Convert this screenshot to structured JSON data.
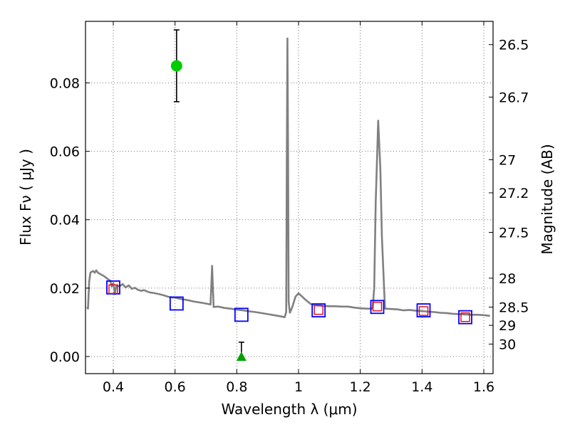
{
  "chart_data": {
    "type": "scatter",
    "title": "",
    "xlabel": "Wavelength  λ (μm)",
    "ylabel": "Flux  Fν  ( μJy )",
    "ylabel_right": "Magnitude (AB)",
    "xlim": [
      0.31,
      1.63
    ],
    "ylim": [
      -0.005,
      0.098
    ],
    "grid": true,
    "x_ticks": [
      0.4,
      0.6,
      0.8,
      1.0,
      1.2,
      1.4,
      1.6
    ],
    "x_tick_labels": [
      "0.4",
      "0.6",
      "0.8",
      "1",
      "1.2",
      "1.4",
      "1.6"
    ],
    "y_ticks": [
      0.0,
      0.02,
      0.04,
      0.06,
      0.08
    ],
    "y_tick_labels": [
      "0.00",
      "0.02",
      "0.04",
      "0.06",
      "0.08"
    ],
    "mag_ticks": [
      26.5,
      26.7,
      27,
      27.2,
      27.5,
      28,
      28.5,
      29,
      30
    ],
    "mag_tick_labels": [
      "26.5",
      "26.7",
      "27",
      "27.2",
      "27.5",
      "28",
      "28.5",
      "29",
      "30"
    ],
    "colors": {
      "spectrum": "#808080",
      "observed": "#0000ff",
      "model": "#e8001c",
      "detection": "#00cc00",
      "upper_limit": "#00a000",
      "errorbar": "#000000"
    },
    "series": [
      {
        "name": "model spectrum",
        "kind": "line",
        "points": [
          [
            0.315,
            0.0145
          ],
          [
            0.318,
            0.014
          ],
          [
            0.322,
            0.022
          ],
          [
            0.326,
            0.0245
          ],
          [
            0.33,
            0.0248
          ],
          [
            0.335,
            0.025
          ],
          [
            0.34,
            0.0245
          ],
          [
            0.345,
            0.0252
          ],
          [
            0.35,
            0.0245
          ],
          [
            0.36,
            0.024
          ],
          [
            0.37,
            0.0235
          ],
          [
            0.38,
            0.0228
          ],
          [
            0.39,
            0.0222
          ],
          [
            0.395,
            0.0205
          ],
          [
            0.4,
            0.0215
          ],
          [
            0.405,
            0.0182
          ],
          [
            0.41,
            0.0208
          ],
          [
            0.42,
            0.0205
          ],
          [
            0.43,
            0.0212
          ],
          [
            0.44,
            0.0202
          ],
          [
            0.45,
            0.0208
          ],
          [
            0.46,
            0.0198
          ],
          [
            0.47,
            0.0201
          ],
          [
            0.48,
            0.0195
          ],
          [
            0.49,
            0.0192
          ],
          [
            0.5,
            0.0194
          ],
          [
            0.51,
            0.019
          ],
          [
            0.52,
            0.0187
          ],
          [
            0.53,
            0.0186
          ],
          [
            0.54,
            0.0184
          ],
          [
            0.55,
            0.0182
          ],
          [
            0.56,
            0.018
          ],
          [
            0.57,
            0.0177
          ],
          [
            0.58,
            0.0174
          ],
          [
            0.6,
            0.0172
          ],
          [
            0.62,
            0.0168
          ],
          [
            0.64,
            0.0165
          ],
          [
            0.66,
            0.0161
          ],
          [
            0.68,
            0.0158
          ],
          [
            0.7,
            0.0155
          ],
          [
            0.715,
            0.0152
          ],
          [
            0.72,
            0.0265
          ],
          [
            0.725,
            0.0145
          ],
          [
            0.74,
            0.0146
          ],
          [
            0.76,
            0.0142
          ],
          [
            0.78,
            0.014
          ],
          [
            0.8,
            0.0137
          ],
          [
            0.82,
            0.0135
          ],
          [
            0.84,
            0.0132
          ],
          [
            0.86,
            0.013
          ],
          [
            0.88,
            0.0127
          ],
          [
            0.9,
            0.0124
          ],
          [
            0.92,
            0.0121
          ],
          [
            0.94,
            0.0118
          ],
          [
            0.955,
            0.0115
          ],
          [
            0.96,
            0.013
          ],
          [
            0.962,
            0.055
          ],
          [
            0.964,
            0.093
          ],
          [
            0.966,
            0.06
          ],
          [
            0.968,
            0.016
          ],
          [
            0.972,
            0.0128
          ],
          [
            0.98,
            0.0145
          ],
          [
            0.99,
            0.0175
          ],
          [
            1.0,
            0.0185
          ],
          [
            1.02,
            0.0168
          ],
          [
            1.04,
            0.0153
          ],
          [
            1.06,
            0.015
          ],
          [
            1.08,
            0.0148
          ],
          [
            1.1,
            0.0147
          ],
          [
            1.12,
            0.0147
          ],
          [
            1.14,
            0.0146
          ],
          [
            1.16,
            0.0146
          ],
          [
            1.18,
            0.0143
          ],
          [
            1.2,
            0.0141
          ],
          [
            1.22,
            0.014
          ],
          [
            1.24,
            0.014
          ],
          [
            1.245,
            0.02
          ],
          [
            1.25,
            0.045
          ],
          [
            1.258,
            0.069
          ],
          [
            1.265,
            0.055
          ],
          [
            1.27,
            0.035
          ],
          [
            1.28,
            0.014
          ],
          [
            1.3,
            0.0139
          ],
          [
            1.32,
            0.0138
          ],
          [
            1.34,
            0.0135
          ],
          [
            1.36,
            0.0136
          ],
          [
            1.38,
            0.0134
          ],
          [
            1.4,
            0.0133
          ],
          [
            1.42,
            0.0131
          ],
          [
            1.44,
            0.013
          ],
          [
            1.46,
            0.0128
          ],
          [
            1.48,
            0.0127
          ],
          [
            1.5,
            0.0125
          ],
          [
            1.52,
            0.0124
          ],
          [
            1.54,
            0.0123
          ],
          [
            1.56,
            0.0122
          ],
          [
            1.58,
            0.0122
          ],
          [
            1.6,
            0.0121
          ],
          [
            1.62,
            0.0119
          ]
        ]
      },
      {
        "name": "observed photometry",
        "kind": "square-marker",
        "points": [
          [
            0.4,
            0.0202
          ],
          [
            0.605,
            0.0155
          ],
          [
            0.815,
            0.0122
          ],
          [
            1.065,
            0.0135
          ],
          [
            1.255,
            0.0145
          ],
          [
            1.405,
            0.0135
          ],
          [
            1.54,
            0.0115
          ]
        ]
      },
      {
        "name": "model photometry",
        "kind": "square-marker-small",
        "points": [
          [
            0.4,
            0.0197
          ],
          [
            1.065,
            0.0136
          ],
          [
            1.255,
            0.0146
          ],
          [
            1.405,
            0.0133
          ],
          [
            1.54,
            0.0115
          ]
        ]
      },
      {
        "name": "detection",
        "kind": "circle-with-errorbar",
        "points": [
          [
            0.605,
            0.085
          ]
        ],
        "error_low": [
          0.0745
        ],
        "error_high": [
          0.0955
        ]
      },
      {
        "name": "upper limit",
        "kind": "triangle-with-errorbar",
        "points": [
          [
            0.815,
            0.0
          ]
        ],
        "error_low": [
          0.0
        ],
        "error_high": [
          0.0042
        ]
      }
    ]
  }
}
